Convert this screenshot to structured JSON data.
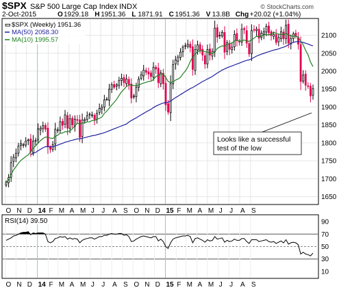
{
  "header": {
    "symbol": "$SPX",
    "name": "S&P 500 Large Cap Index",
    "exchange": "INDX",
    "date": "2-Oct-2015",
    "ohlc": [
      {
        "label": "O",
        "value": "1929.18"
      },
      {
        "label": "H",
        "value": "1951.36"
      },
      {
        "label": "L",
        "value": "1871.91"
      },
      {
        "label": "C",
        "value": "1951.36"
      },
      {
        "label": "V",
        "value": "13.8B"
      }
    ],
    "change_label": "Chg",
    "change_value": "+20.02 (+1.04%)",
    "watermark": "© StockCharts.com"
  },
  "legend": [
    {
      "label": "$SPX (Weekly) 1951.36",
      "color": "#000000"
    },
    {
      "label": "MA(50) 2058.30",
      "color": "#2020a0"
    },
    {
      "label": "MA(10) 1995.57",
      "color": "#208020"
    }
  ],
  "annotation": {
    "lines": [
      "Looks like a successful",
      "test of the low"
    ]
  },
  "colors": {
    "up_candle": "#000000",
    "down_candle": "#e0004f",
    "ma50": "#2020a0",
    "ma10": "#208020",
    "grid": "#e6e6e6",
    "rsi_line": "#000000",
    "rsi_fill": "#000000"
  },
  "chart_data": [
    {
      "type": "candlestick",
      "title": "",
      "ylim": [
        1630,
        2145
      ],
      "y_ticks": [
        "1650",
        "1700",
        "1750",
        "1800",
        "1850",
        "1900",
        "1950",
        "2000",
        "2050",
        "2100"
      ],
      "x_ticks": [
        "O",
        "N",
        "D",
        "14",
        "F",
        "M",
        "A",
        "M",
        "J",
        "J",
        "A",
        "S",
        "O",
        "N",
        "D",
        "15",
        "F",
        "M",
        "A",
        "M",
        "J",
        "J",
        "A",
        "S"
      ],
      "x_start": "2013-10-04",
      "grid": true,
      "legend_position": "top-left",
      "close": [
        1690,
        1703,
        1745,
        1760,
        1771,
        1791,
        1798,
        1795,
        1805,
        1808,
        1775,
        1805,
        1807,
        1839,
        1841,
        1848,
        1838,
        1790,
        1782,
        1795,
        1838,
        1836,
        1859,
        1849,
        1878,
        1841,
        1867,
        1850,
        1866,
        1863,
        1815,
        1864,
        1865,
        1876,
        1880,
        1878,
        1865,
        1882,
        1896,
        1900,
        1920,
        1922,
        1950,
        1962,
        1955,
        1962,
        1974,
        1980,
        1968,
        1978,
        1963,
        1925,
        1931,
        1955,
        1978,
        1990,
        2003,
        1997,
        1992,
        1985,
        2011,
        2006,
        1968,
        1995,
        1965,
        1906,
        1886,
        1965,
        2018,
        2031,
        2039,
        2053,
        2067,
        2071,
        2075,
        2066,
        2005,
        2060,
        2073,
        2058,
        2045,
        2020,
        2060,
        2045,
        2055,
        2120,
        2095,
        2100,
        2108,
        2053,
        2079,
        2061,
        2067,
        2102,
        2085,
        2081,
        2117,
        2116,
        2078,
        2048,
        2113,
        2115,
        2117,
        2092,
        2106,
        2110,
        2125,
        2107,
        2099,
        2102,
        2080,
        2094,
        2110,
        2090,
        2128,
        2078,
        2091,
        2104,
        2097,
        2075,
        1971,
        1989,
        1961,
        1958,
        1931,
        1951
      ]
    },
    {
      "type": "line",
      "title": "RSI(14) 39.50",
      "ylim": [
        0,
        100
      ],
      "y_ticks": [
        "10",
        "30",
        "50",
        "70",
        "90"
      ],
      "reference_lines": [
        30,
        50,
        70
      ],
      "values": [
        60,
        62,
        64,
        67,
        68,
        70,
        72,
        73,
        73,
        74,
        69,
        72,
        71,
        72,
        72,
        72,
        70,
        58,
        56,
        58,
        63,
        64,
        66,
        65,
        66,
        62,
        64,
        62,
        63,
        62,
        56,
        60,
        62,
        63,
        64,
        64,
        62,
        64,
        66,
        66,
        68,
        68,
        70,
        71,
        70,
        70,
        71,
        71,
        68,
        69,
        66,
        58,
        59,
        62,
        64,
        66,
        67,
        66,
        65,
        64,
        66,
        66,
        59,
        62,
        58,
        50,
        47,
        56,
        62,
        64,
        65,
        66,
        67,
        67,
        68,
        66,
        56,
        63,
        64,
        62,
        60,
        57,
        61,
        59,
        60,
        66,
        62,
        63,
        64,
        57,
        60,
        58,
        59,
        62,
        60,
        60,
        63,
        63,
        58,
        55,
        61,
        61,
        61,
        58,
        59,
        60,
        61,
        58,
        57,
        58,
        55,
        57,
        59,
        56,
        61,
        54,
        56,
        57,
        56,
        53,
        38,
        41,
        38,
        37,
        35,
        39.5
      ]
    }
  ]
}
